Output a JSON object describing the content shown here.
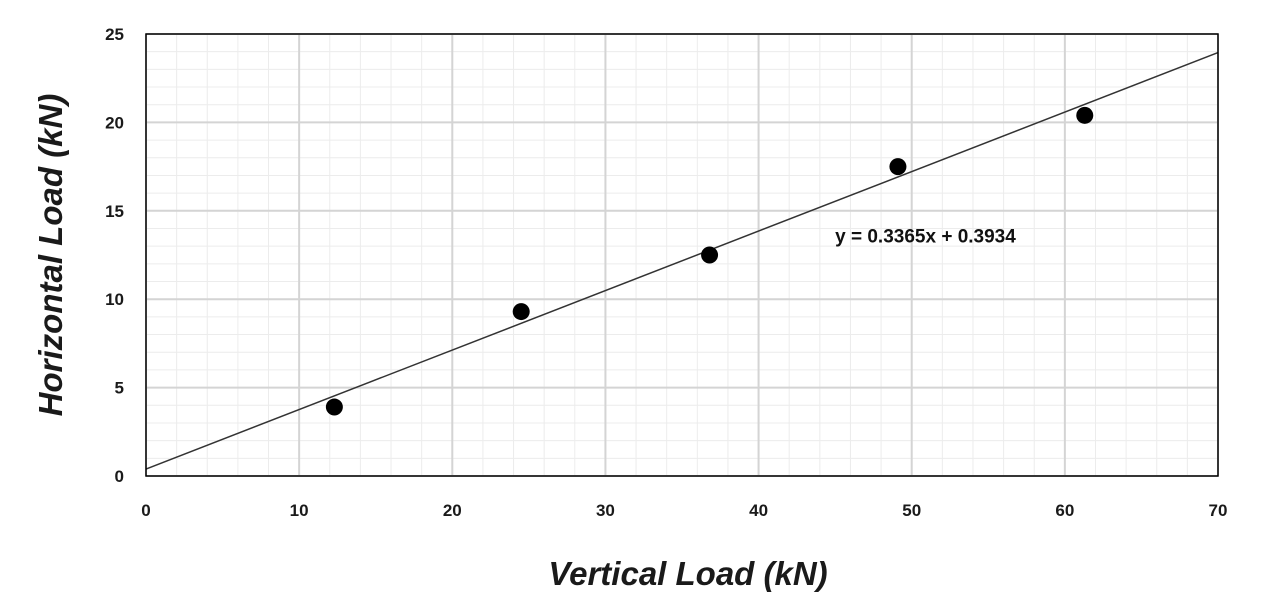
{
  "chart_data": {
    "type": "scatter",
    "title": "",
    "xlabel": "Vertical Load (kN)",
    "ylabel": "Horizontal Load (kN)",
    "xlim": [
      0,
      70
    ],
    "ylim": [
      0,
      25
    ],
    "xticks": [
      0,
      10,
      20,
      30,
      40,
      50,
      60,
      70
    ],
    "yticks": [
      0,
      5,
      10,
      15,
      20,
      25
    ],
    "grid": true,
    "legend": "none",
    "series": [
      {
        "name": "data",
        "x": [
          12.3,
          24.5,
          36.8,
          49.1,
          61.3
        ],
        "y": [
          3.9,
          9.3,
          12.5,
          17.5,
          20.4
        ]
      }
    ],
    "trendline": {
      "type": "linear",
      "slope": 0.3365,
      "intercept": 0.3934,
      "x_range": [
        0,
        70
      ]
    },
    "annotations": [
      {
        "text": "y = 0.3365x + 0.3934",
        "x": 45,
        "y": 13.2
      }
    ]
  },
  "colors": {
    "marker": "#000000",
    "trendline": "#333333",
    "major_grid": "#d4d4d4",
    "minor_grid": "#ececec",
    "axis": "#000000"
  }
}
